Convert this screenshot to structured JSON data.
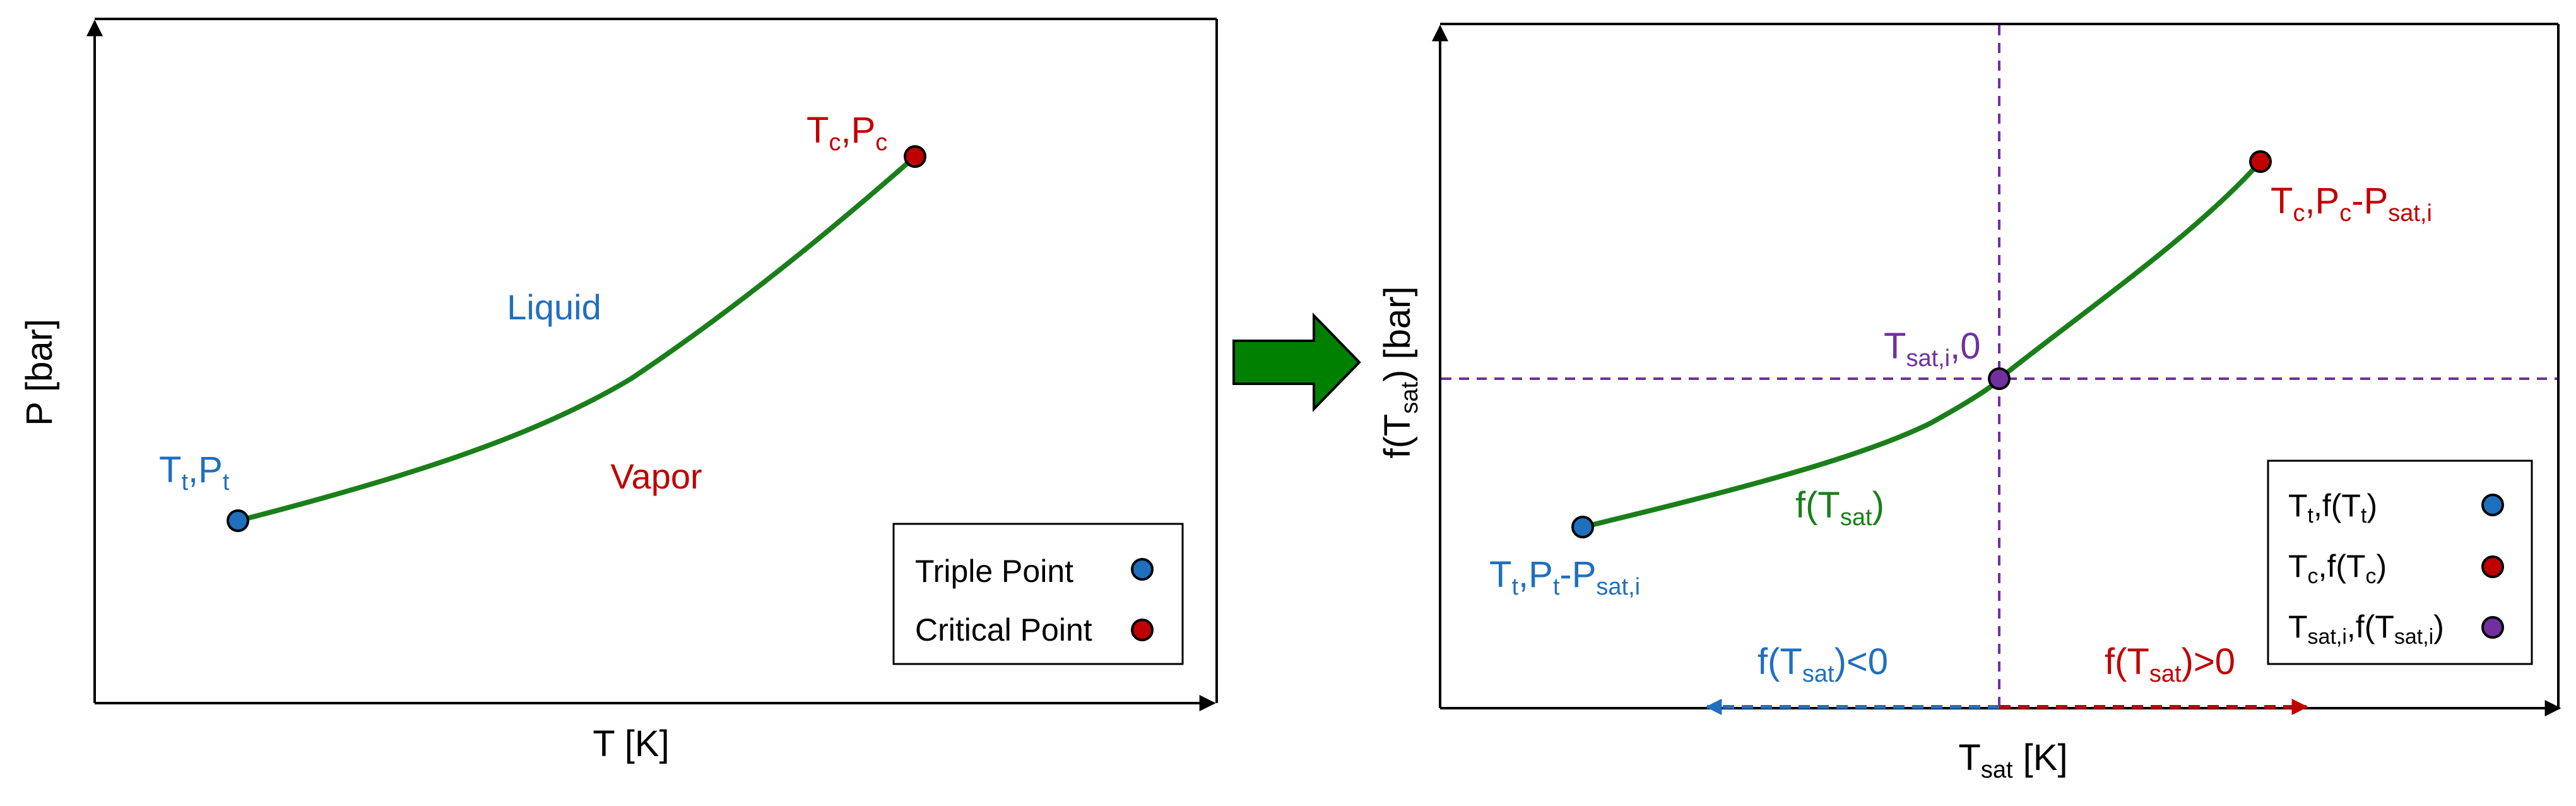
{
  "colors": {
    "curve": "#1a7f1a",
    "blue": "#1f6fbf",
    "red": "#c00000",
    "purple": "#7030a0",
    "arrow_fill": "#008000",
    "black": "#000000"
  },
  "left_panel": {
    "y_label": "P [bar]",
    "x_label": "T [K]",
    "region_liquid": "Liquid",
    "region_vapor": "Vapor",
    "triple": {
      "T": "T",
      "t_sub": "t",
      "P": "P",
      "p_sub": "t"
    },
    "critical": {
      "T": "T",
      "c_sub": "c",
      "P": "P",
      "p_sub": "c"
    },
    "legend": [
      {
        "label": "Triple Point",
        "color": "blue"
      },
      {
        "label": "Critical Point",
        "color": "red"
      }
    ]
  },
  "transition_arrow_icon": "right-arrow-icon",
  "right_panel": {
    "y_label": {
      "pre": "f(T",
      "sub": "sat",
      "post": ") [bar]"
    },
    "x_label": {
      "pre": "T",
      "sub": "sat",
      "post": " [K]"
    },
    "curve_label": {
      "pre": "f(T",
      "sub": "sat",
      "post": ")"
    },
    "left_point": {
      "a": "T",
      "a_sub": "t",
      "b": ",P",
      "b_sub": "t",
      "c": "-P",
      "c_sub": "sat,i"
    },
    "right_point": {
      "a": "T",
      "a_sub": "c",
      "b": ",P",
      "b_sub": "c",
      "c": "-P",
      "c_sub": "sat,i"
    },
    "root_point": {
      "a": "T",
      "a_sub": "sat,i",
      "b": ",0"
    },
    "neg_label": {
      "pre": "f(T",
      "sub": "sat",
      "post": ")<0"
    },
    "pos_label": {
      "pre": "f(T",
      "sub": "sat",
      "post": ")>0"
    },
    "legend": [
      {
        "a": "T",
        "a_sub": "t",
        "b": ",f(T",
        "b_sub": "t",
        "c": ")",
        "color": "blue"
      },
      {
        "a": "T",
        "a_sub": "c",
        "b": ",f(T",
        "b_sub": "c",
        "c": ")",
        "color": "red"
      },
      {
        "a": "T",
        "a_sub": "sat,i",
        "b": ",f(T",
        "b_sub": "sat,i",
        "c": ")",
        "color": "purple"
      }
    ]
  }
}
